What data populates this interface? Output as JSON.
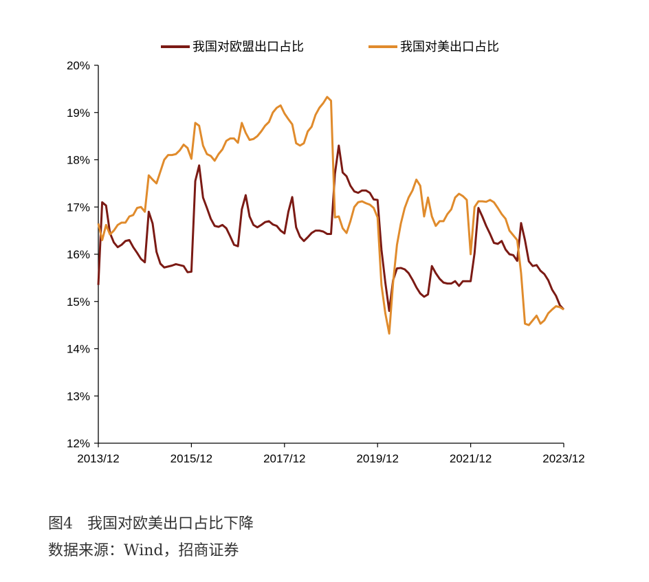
{
  "chart_data": {
    "type": "line",
    "title": "",
    "xlabel": "",
    "ylabel": "",
    "ylim": [
      12,
      20
    ],
    "yticks": [
      "12%",
      "13%",
      "14%",
      "15%",
      "16%",
      "17%",
      "18%",
      "19%",
      "20%"
    ],
    "xticks": [
      "2013/12",
      "2015/12",
      "2017/12",
      "2019/12",
      "2021/12",
      "2023/12"
    ],
    "legend_position": "top",
    "series": [
      {
        "name": "我国对欧盟出口占比",
        "color": "#7B1A14",
        "points": [
          [
            "2013-12",
            15.35
          ],
          [
            "2014-01",
            17.1
          ],
          [
            "2014-02",
            17.03
          ],
          [
            "2014-03",
            16.45
          ],
          [
            "2014-04",
            16.25
          ],
          [
            "2014-05",
            16.15
          ],
          [
            "2014-06",
            16.2
          ],
          [
            "2014-07",
            16.28
          ],
          [
            "2014-08",
            16.3
          ],
          [
            "2014-09",
            16.15
          ],
          [
            "2014-10",
            16.03
          ],
          [
            "2014-11",
            15.9
          ],
          [
            "2014-12",
            15.83
          ],
          [
            "2015-01",
            16.9
          ],
          [
            "2015-02",
            16.65
          ],
          [
            "2015-03",
            16.05
          ],
          [
            "2015-04",
            15.8
          ],
          [
            "2015-05",
            15.72
          ],
          [
            "2015-06",
            15.74
          ],
          [
            "2015-07",
            15.76
          ],
          [
            "2015-08",
            15.79
          ],
          [
            "2015-09",
            15.77
          ],
          [
            "2015-10",
            15.75
          ],
          [
            "2015-11",
            15.62
          ],
          [
            "2015-12",
            15.63
          ],
          [
            "2016-01",
            17.55
          ],
          [
            "2016-02",
            17.88
          ],
          [
            "2016-03",
            17.2
          ],
          [
            "2016-04",
            16.98
          ],
          [
            "2016-05",
            16.75
          ],
          [
            "2016-06",
            16.6
          ],
          [
            "2016-07",
            16.58
          ],
          [
            "2016-08",
            16.62
          ],
          [
            "2016-09",
            16.55
          ],
          [
            "2016-10",
            16.38
          ],
          [
            "2016-11",
            16.2
          ],
          [
            "2016-12",
            16.17
          ],
          [
            "2017-01",
            16.95
          ],
          [
            "2017-02",
            17.25
          ],
          [
            "2017-03",
            16.8
          ],
          [
            "2017-04",
            16.62
          ],
          [
            "2017-05",
            16.57
          ],
          [
            "2017-06",
            16.62
          ],
          [
            "2017-07",
            16.68
          ],
          [
            "2017-08",
            16.7
          ],
          [
            "2017-09",
            16.63
          ],
          [
            "2017-10",
            16.6
          ],
          [
            "2017-11",
            16.5
          ],
          [
            "2017-12",
            16.44
          ],
          [
            "2018-01",
            16.9
          ],
          [
            "2018-02",
            17.21
          ],
          [
            "2018-03",
            16.57
          ],
          [
            "2018-04",
            16.37
          ],
          [
            "2018-05",
            16.28
          ],
          [
            "2018-06",
            16.36
          ],
          [
            "2018-07",
            16.45
          ],
          [
            "2018-08",
            16.5
          ],
          [
            "2018-09",
            16.5
          ],
          [
            "2018-10",
            16.48
          ],
          [
            "2018-11",
            16.43
          ],
          [
            "2018-12",
            16.43
          ],
          [
            "2019-01",
            17.7
          ],
          [
            "2019-02",
            18.3
          ],
          [
            "2019-03",
            17.73
          ],
          [
            "2019-04",
            17.65
          ],
          [
            "2019-05",
            17.45
          ],
          [
            "2019-06",
            17.33
          ],
          [
            "2019-07",
            17.3
          ],
          [
            "2019-08",
            17.35
          ],
          [
            "2019-09",
            17.35
          ],
          [
            "2019-10",
            17.3
          ],
          [
            "2019-11",
            17.16
          ],
          [
            "2019-12",
            17.15
          ],
          [
            "2020-01",
            16.1
          ],
          [
            "2020-02",
            15.4
          ],
          [
            "2020-03",
            14.8
          ],
          [
            "2020-04",
            15.45
          ],
          [
            "2020-05",
            15.7
          ],
          [
            "2020-06",
            15.71
          ],
          [
            "2020-07",
            15.68
          ],
          [
            "2020-08",
            15.6
          ],
          [
            "2020-09",
            15.46
          ],
          [
            "2020-10",
            15.3
          ],
          [
            "2020-11",
            15.17
          ],
          [
            "2020-12",
            15.1
          ],
          [
            "2021-01",
            15.15
          ],
          [
            "2021-02",
            15.75
          ],
          [
            "2021-03",
            15.6
          ],
          [
            "2021-04",
            15.48
          ],
          [
            "2021-05",
            15.4
          ],
          [
            "2021-06",
            15.38
          ],
          [
            "2021-07",
            15.38
          ],
          [
            "2021-08",
            15.43
          ],
          [
            "2021-09",
            15.33
          ],
          [
            "2021-10",
            15.43
          ],
          [
            "2021-11",
            15.43
          ],
          [
            "2021-12",
            15.43
          ],
          [
            "2022-01",
            16.02
          ],
          [
            "2022-02",
            16.98
          ],
          [
            "2022-03",
            16.8
          ],
          [
            "2022-04",
            16.6
          ],
          [
            "2022-05",
            16.43
          ],
          [
            "2022-06",
            16.24
          ],
          [
            "2022-07",
            16.22
          ],
          [
            "2022-08",
            16.28
          ],
          [
            "2022-09",
            16.1
          ],
          [
            "2022-10",
            16.0
          ],
          [
            "2022-11",
            15.98
          ],
          [
            "2022-12",
            15.86
          ],
          [
            "2023-01",
            16.66
          ],
          [
            "2023-02",
            16.3
          ],
          [
            "2023-03",
            15.85
          ],
          [
            "2023-04",
            15.75
          ],
          [
            "2023-05",
            15.77
          ],
          [
            "2023-06",
            15.65
          ],
          [
            "2023-07",
            15.58
          ],
          [
            "2023-08",
            15.45
          ],
          [
            "2023-09",
            15.25
          ],
          [
            "2023-10",
            15.12
          ],
          [
            "2023-11",
            14.92
          ],
          [
            "2023-12",
            14.83
          ]
        ]
      },
      {
        "name": "我国对美出口占比",
        "color": "#E08B2C",
        "points": [
          [
            "2013-12",
            16.65
          ],
          [
            "2014-01",
            16.3
          ],
          [
            "2014-02",
            16.62
          ],
          [
            "2014-03",
            16.42
          ],
          [
            "2014-04",
            16.5
          ],
          [
            "2014-05",
            16.62
          ],
          [
            "2014-06",
            16.67
          ],
          [
            "2014-07",
            16.67
          ],
          [
            "2014-08",
            16.8
          ],
          [
            "2014-09",
            16.83
          ],
          [
            "2014-10",
            16.98
          ],
          [
            "2014-11",
            17.0
          ],
          [
            "2014-12",
            16.9
          ],
          [
            "2015-01",
            17.67
          ],
          [
            "2015-02",
            17.58
          ],
          [
            "2015-03",
            17.5
          ],
          [
            "2015-04",
            17.75
          ],
          [
            "2015-05",
            18.0
          ],
          [
            "2015-06",
            18.1
          ],
          [
            "2015-07",
            18.1
          ],
          [
            "2015-08",
            18.12
          ],
          [
            "2015-09",
            18.2
          ],
          [
            "2015-10",
            18.32
          ],
          [
            "2015-11",
            18.25
          ],
          [
            "2015-12",
            18.02
          ],
          [
            "2016-01",
            18.78
          ],
          [
            "2016-02",
            18.72
          ],
          [
            "2016-03",
            18.3
          ],
          [
            "2016-04",
            18.12
          ],
          [
            "2016-05",
            18.08
          ],
          [
            "2016-06",
            17.98
          ],
          [
            "2016-07",
            18.12
          ],
          [
            "2016-08",
            18.22
          ],
          [
            "2016-09",
            18.4
          ],
          [
            "2016-10",
            18.45
          ],
          [
            "2016-11",
            18.45
          ],
          [
            "2016-12",
            18.36
          ],
          [
            "2017-01",
            18.78
          ],
          [
            "2017-02",
            18.57
          ],
          [
            "2017-03",
            18.42
          ],
          [
            "2017-04",
            18.44
          ],
          [
            "2017-05",
            18.5
          ],
          [
            "2017-06",
            18.6
          ],
          [
            "2017-07",
            18.72
          ],
          [
            "2017-08",
            18.8
          ],
          [
            "2017-09",
            19.0
          ],
          [
            "2017-10",
            19.1
          ],
          [
            "2017-11",
            19.15
          ],
          [
            "2017-12",
            18.98
          ],
          [
            "2018-01",
            18.86
          ],
          [
            "2018-02",
            18.75
          ],
          [
            "2018-03",
            18.35
          ],
          [
            "2018-04",
            18.3
          ],
          [
            "2018-05",
            18.35
          ],
          [
            "2018-06",
            18.6
          ],
          [
            "2018-07",
            18.7
          ],
          [
            "2018-08",
            18.95
          ],
          [
            "2018-09",
            19.1
          ],
          [
            "2018-10",
            19.2
          ],
          [
            "2018-11",
            19.33
          ],
          [
            "2018-12",
            19.25
          ],
          [
            "2019-01",
            16.78
          ],
          [
            "2019-02",
            16.8
          ],
          [
            "2019-03",
            16.55
          ],
          [
            "2019-04",
            16.45
          ],
          [
            "2019-05",
            16.7
          ],
          [
            "2019-06",
            17.0
          ],
          [
            "2019-07",
            17.1
          ],
          [
            "2019-08",
            17.12
          ],
          [
            "2019-09",
            17.08
          ],
          [
            "2019-10",
            17.05
          ],
          [
            "2019-11",
            16.98
          ],
          [
            "2019-12",
            16.78
          ],
          [
            "2020-01",
            15.35
          ],
          [
            "2020-02",
            14.75
          ],
          [
            "2020-03",
            14.32
          ],
          [
            "2020-04",
            15.4
          ],
          [
            "2020-05",
            16.2
          ],
          [
            "2020-06",
            16.65
          ],
          [
            "2020-07",
            16.98
          ],
          [
            "2020-08",
            17.2
          ],
          [
            "2020-09",
            17.35
          ],
          [
            "2020-10",
            17.58
          ],
          [
            "2020-11",
            17.45
          ],
          [
            "2020-12",
            16.8
          ],
          [
            "2021-01",
            17.2
          ],
          [
            "2021-02",
            16.8
          ],
          [
            "2021-03",
            16.6
          ],
          [
            "2021-04",
            16.7
          ],
          [
            "2021-05",
            16.7
          ],
          [
            "2021-06",
            16.85
          ],
          [
            "2021-07",
            16.95
          ],
          [
            "2021-08",
            17.2
          ],
          [
            "2021-09",
            17.28
          ],
          [
            "2021-10",
            17.23
          ],
          [
            "2021-11",
            17.15
          ],
          [
            "2021-12",
            16.0
          ],
          [
            "2022-01",
            17.0
          ],
          [
            "2022-02",
            17.12
          ],
          [
            "2022-03",
            17.12
          ],
          [
            "2022-04",
            17.11
          ],
          [
            "2022-05",
            17.15
          ],
          [
            "2022-06",
            17.1
          ],
          [
            "2022-07",
            16.98
          ],
          [
            "2022-08",
            16.85
          ],
          [
            "2022-09",
            16.75
          ],
          [
            "2022-10",
            16.5
          ],
          [
            "2022-11",
            16.4
          ],
          [
            "2022-12",
            16.3
          ],
          [
            "2023-01",
            15.6
          ],
          [
            "2023-02",
            14.53
          ],
          [
            "2023-03",
            14.5
          ],
          [
            "2023-04",
            14.6
          ],
          [
            "2023-05",
            14.7
          ],
          [
            "2023-06",
            14.53
          ],
          [
            "2023-07",
            14.6
          ],
          [
            "2023-08",
            14.75
          ],
          [
            "2023-09",
            14.83
          ],
          [
            "2023-10",
            14.9
          ],
          [
            "2023-11",
            14.88
          ],
          [
            "2023-12",
            14.83
          ]
        ]
      }
    ]
  },
  "caption": {
    "title": "图4   我国对欧美出口占比下降",
    "source": "数据来源：Wind，招商证券"
  }
}
